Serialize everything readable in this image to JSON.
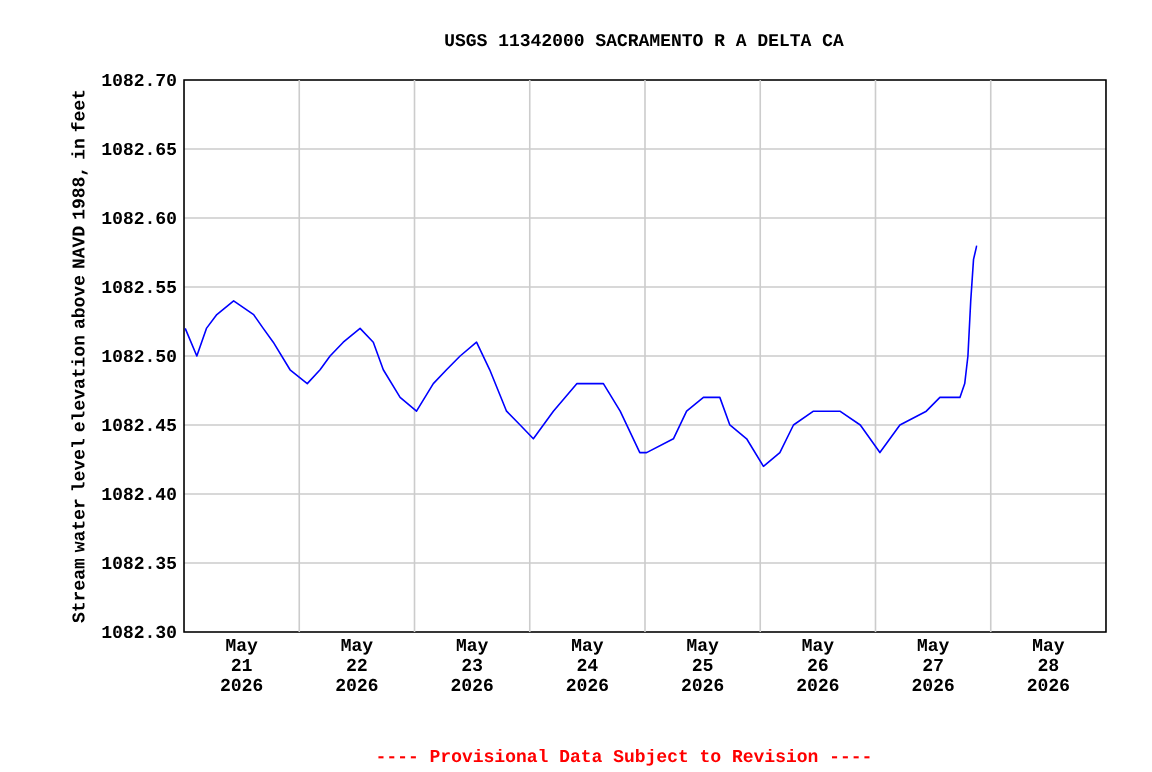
{
  "chart_data": {
    "type": "line",
    "title": "USGS 11342000 SACRAMENTO R A DELTA CA",
    "ylabel": "Stream water level elevation above NAVD 1988, in feet",
    "annotations": [
      "---- Provisional Data Subject to Revision ----"
    ],
    "x": [
      "2026-05-21T00:15",
      "2026-05-21T02:40",
      "2026-05-21T04:40",
      "2026-05-21T06:50",
      "2026-05-21T10:20",
      "2026-05-21T14:30",
      "2026-05-21T16:30",
      "2026-05-21T18:35",
      "2026-05-21T22:05",
      "2026-05-22T01:40",
      "2026-05-22T04:20",
      "2026-05-22T06:25",
      "2026-05-22T09:10",
      "2026-05-22T12:40",
      "2026-05-22T15:25",
      "2026-05-22T17:30",
      "2026-05-22T21:00",
      "2026-05-23T00:25",
      "2026-05-23T03:55",
      "2026-05-23T06:40",
      "2026-05-23T09:30",
      "2026-05-23T12:55",
      "2026-05-23T15:40",
      "2026-05-23T19:10",
      "2026-05-23T22:00",
      "2026-05-24T00:45",
      "2026-05-24T04:55",
      "2026-05-24T09:50",
      "2026-05-24T15:20",
      "2026-05-24T18:50",
      "2026-05-24T22:55",
      "2026-05-25T00:20",
      "2026-05-25T05:55",
      "2026-05-25T08:40",
      "2026-05-25T12:10",
      "2026-05-25T15:35",
      "2026-05-25T17:40",
      "2026-05-25T21:10",
      "2026-05-26T00:40",
      "2026-05-26T04:05",
      "2026-05-26T06:55",
      "2026-05-26T11:05",
      "2026-05-26T16:35",
      "2026-05-26T20:50",
      "2026-05-27T00:55",
      "2026-05-27T05:05",
      "2026-05-27T10:35",
      "2026-05-27T13:25",
      "2026-05-27T17:35",
      "2026-05-27T18:35",
      "2026-05-27T19:15",
      "2026-05-27T19:50",
      "2026-05-27T20:25",
      "2026-05-27T21:05"
    ],
    "series": [
      {
        "color": "#0000ff",
        "values": [
          1082.52,
          1082.5,
          1082.52,
          1082.53,
          1082.54,
          1082.53,
          1082.52,
          1082.51,
          1082.49,
          1082.48,
          1082.49,
          1082.5,
          1082.51,
          1082.52,
          1082.51,
          1082.49,
          1082.47,
          1082.46,
          1082.48,
          1082.49,
          1082.5,
          1082.51,
          1082.49,
          1082.46,
          1082.45,
          1082.44,
          1082.46,
          1082.48,
          1082.48,
          1082.46,
          1082.43,
          1082.43,
          1082.44,
          1082.46,
          1082.47,
          1082.47,
          1082.45,
          1082.44,
          1082.42,
          1082.43,
          1082.45,
          1082.46,
          1082.46,
          1082.45,
          1082.43,
          1082.45,
          1082.46,
          1082.47,
          1082.47,
          1082.48,
          1082.5,
          1082.54,
          1082.57,
          1082.58
        ]
      }
    ],
    "xlim": [
      "2026-05-21",
      "2026-05-29"
    ],
    "xticks": [
      {
        "value": "2026-05-21T12:00",
        "label": "May 21 2026"
      },
      {
        "value": "2026-05-22T12:00",
        "label": "May 22 2026"
      },
      {
        "value": "2026-05-23T12:00",
        "label": "May 23 2026"
      },
      {
        "value": "2026-05-24T12:00",
        "label": "May 24 2026"
      },
      {
        "value": "2026-05-25T12:00",
        "label": "May 25 2026"
      },
      {
        "value": "2026-05-26T12:00",
        "label": "May 26 2026"
      },
      {
        "value": "2026-05-27T12:00",
        "label": "May 27 2026"
      },
      {
        "value": "2026-05-28T12:00",
        "label": "May 28 2026"
      },
      {
        "value": "2026-05-22",
        "label": null
      },
      {
        "value": "2026-05-23",
        "label": null
      },
      {
        "value": "2026-05-24",
        "label": null
      },
      {
        "value": "2026-05-25",
        "label": null
      },
      {
        "value": "2026-05-26",
        "label": null
      },
      {
        "value": "2026-05-27",
        "label": null
      },
      {
        "value": "2026-05-28",
        "label": null
      }
    ],
    "ylim": [
      1082.3,
      1082.7
    ],
    "yticks": [
      {
        "value": 1082.3,
        "label": "1082.30"
      },
      {
        "value": 1082.35,
        "label": "1082.35"
      },
      {
        "value": 1082.4,
        "label": "1082.40"
      },
      {
        "value": 1082.45,
        "label": "1082.45"
      },
      {
        "value": 1082.5,
        "label": "1082.50"
      },
      {
        "value": 1082.55,
        "label": "1082.55"
      },
      {
        "value": 1082.6,
        "label": "1082.60"
      },
      {
        "value": 1082.65,
        "label": "1082.65"
      },
      {
        "value": 1082.7,
        "label": "1082.70"
      }
    ],
    "grid": true,
    "marker": "none",
    "line_style": "solid"
  }
}
